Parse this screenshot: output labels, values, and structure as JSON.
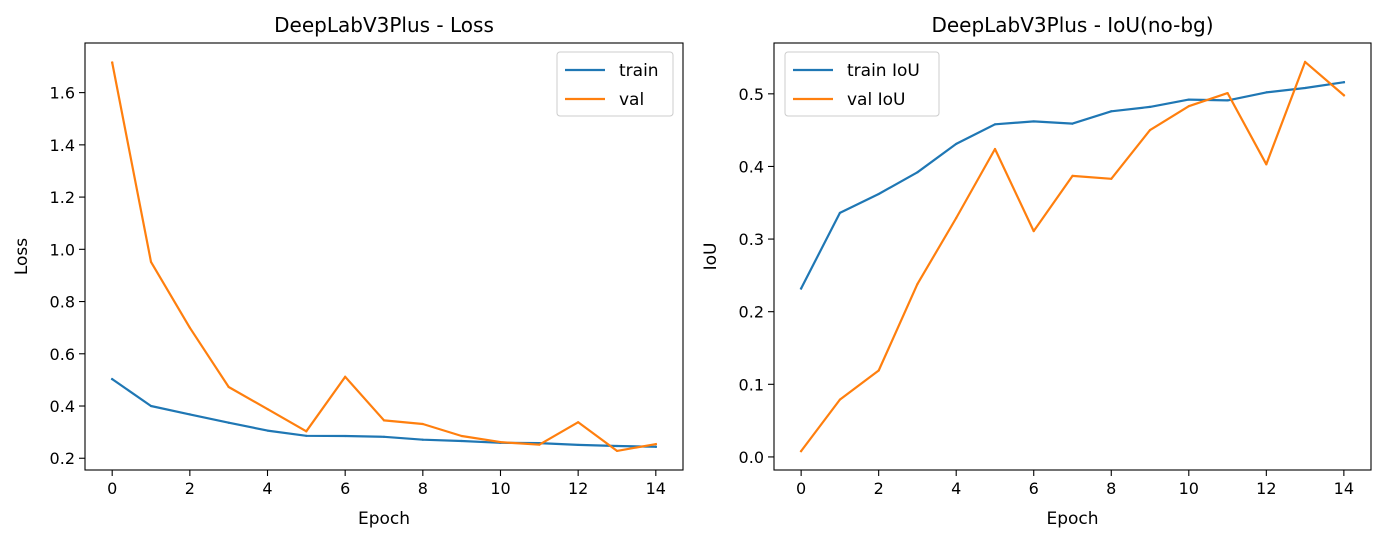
{
  "chart_data": [
    {
      "type": "line",
      "title": "DeepLabV3Plus - Loss",
      "xlabel": "Epoch",
      "ylabel": "Loss",
      "x": [
        0,
        1,
        2,
        3,
        4,
        5,
        6,
        7,
        8,
        9,
        10,
        11,
        12,
        13,
        14
      ],
      "xlim": [
        -0.7,
        14.7
      ],
      "ylim": [
        0.155,
        1.79
      ],
      "xticks": [
        0,
        2,
        4,
        6,
        8,
        10,
        12,
        14
      ],
      "yticks": [
        0.2,
        0.4,
        0.6,
        0.8,
        1.0,
        1.2,
        1.4,
        1.6
      ],
      "xtick_labels": [
        "0",
        "2",
        "4",
        "6",
        "8",
        "10",
        "12",
        "14"
      ],
      "ytick_labels": [
        "0.2",
        "0.4",
        "0.6",
        "0.8",
        "1.0",
        "1.2",
        "1.4",
        "1.6"
      ],
      "legend_position": "top-right",
      "grid": false,
      "series": [
        {
          "name": "train",
          "color": "#1f77b4",
          "values": [
            0.503,
            0.4,
            0.368,
            0.336,
            0.306,
            0.286,
            0.285,
            0.282,
            0.271,
            0.266,
            0.259,
            0.258,
            0.251,
            0.247,
            0.244
          ]
        },
        {
          "name": "val",
          "color": "#ff7f0e",
          "values": [
            1.715,
            0.952,
            0.7,
            0.473,
            0.388,
            0.303,
            0.512,
            0.345,
            0.331,
            0.285,
            0.262,
            0.252,
            0.338,
            0.228,
            0.254
          ]
        }
      ]
    },
    {
      "type": "line",
      "title": "DeepLabV3Plus - IoU(no-bg)",
      "xlabel": "Epoch",
      "ylabel": "IoU",
      "x": [
        0,
        1,
        2,
        3,
        4,
        5,
        6,
        7,
        8,
        9,
        10,
        11,
        12,
        13,
        14
      ],
      "xlim": [
        -0.7,
        14.7
      ],
      "ylim": [
        -0.018,
        0.57
      ],
      "xticks": [
        0,
        2,
        4,
        6,
        8,
        10,
        12,
        14
      ],
      "yticks": [
        0.0,
        0.1,
        0.2,
        0.3,
        0.4,
        0.5
      ],
      "xtick_labels": [
        "0",
        "2",
        "4",
        "6",
        "8",
        "10",
        "12",
        "14"
      ],
      "ytick_labels": [
        "0.0",
        "0.1",
        "0.2",
        "0.3",
        "0.4",
        "0.5"
      ],
      "legend_position": "top-left",
      "grid": false,
      "series": [
        {
          "name": "train IoU",
          "color": "#1f77b4",
          "values": [
            0.232,
            0.336,
            0.362,
            0.392,
            0.431,
            0.458,
            0.462,
            0.459,
            0.476,
            0.482,
            0.492,
            0.491,
            0.502,
            0.508,
            0.516
          ]
        },
        {
          "name": "val IoU",
          "color": "#ff7f0e",
          "values": [
            0.008,
            0.079,
            0.119,
            0.238,
            0.329,
            0.424,
            0.311,
            0.387,
            0.383,
            0.45,
            0.483,
            0.501,
            0.403,
            0.544,
            0.498
          ]
        }
      ]
    }
  ]
}
